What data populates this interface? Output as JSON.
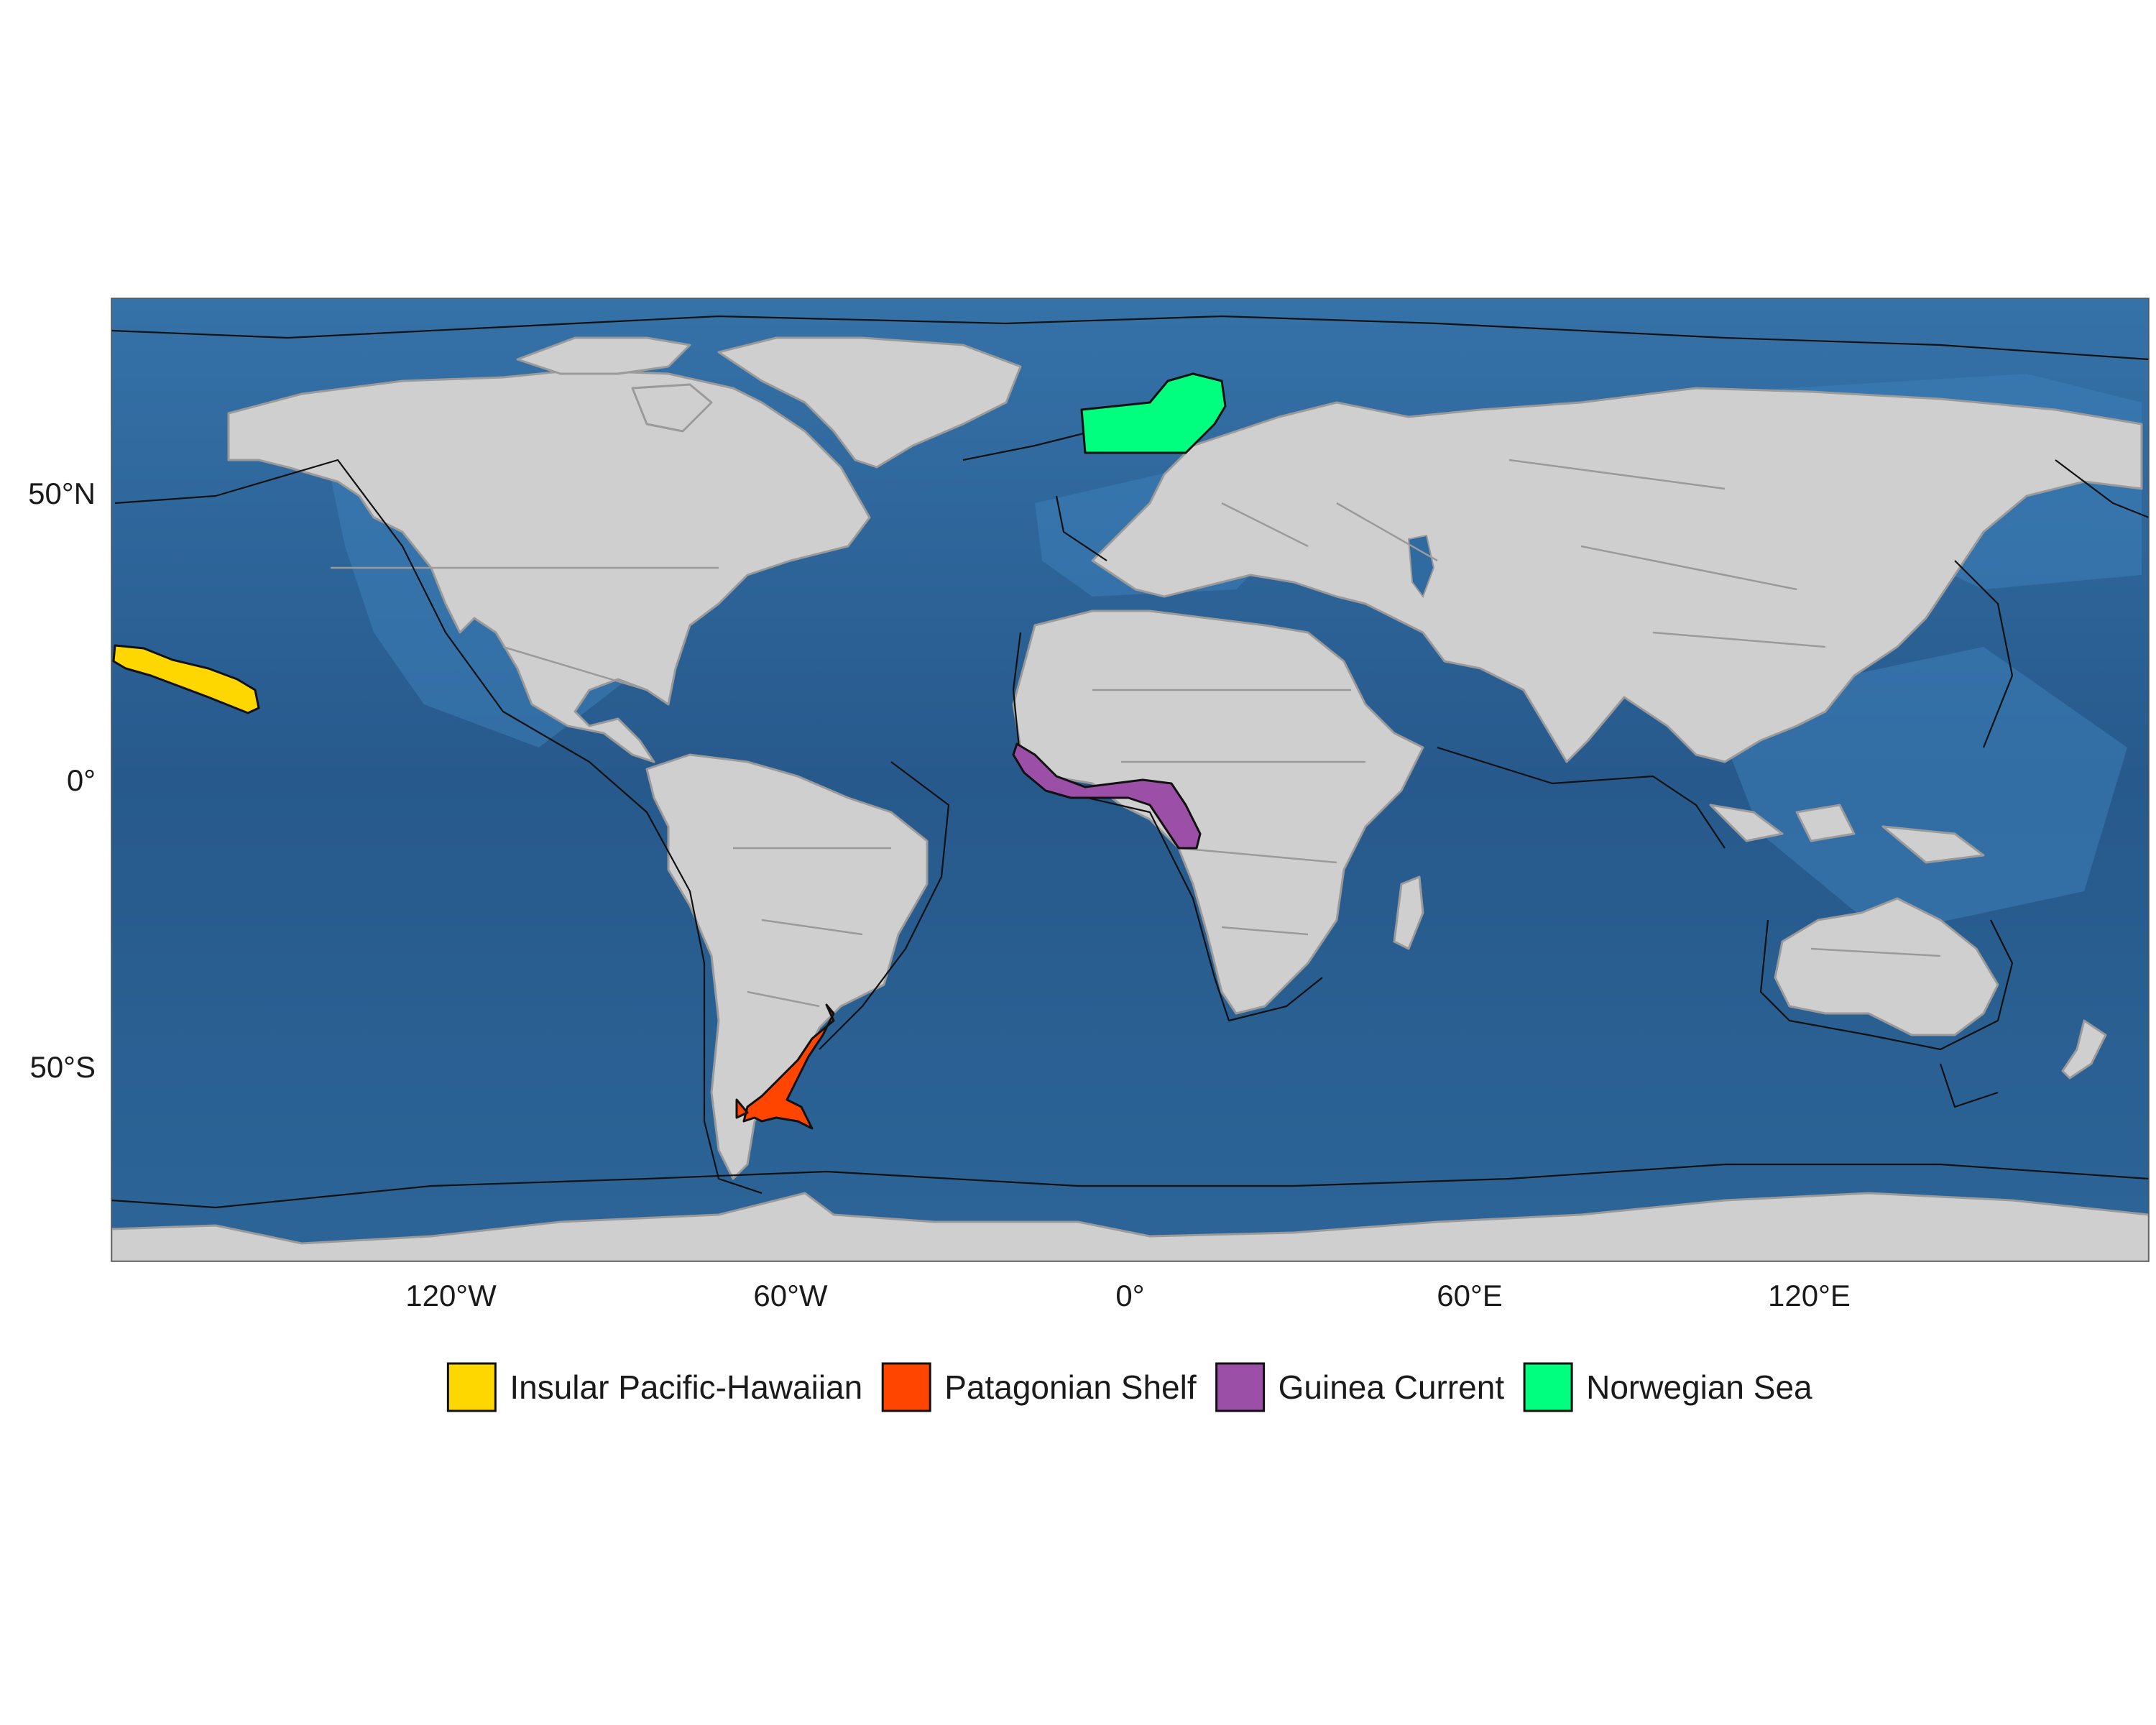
{
  "map": {
    "x_ticks": [
      {
        "lon": -120,
        "label": "120°W"
      },
      {
        "lon": -60,
        "label": "60°W"
      },
      {
        "lon": 0,
        "label": "0°"
      },
      {
        "lon": 60,
        "label": "60°E"
      },
      {
        "lon": 120,
        "label": "120°E"
      }
    ],
    "y_ticks": [
      {
        "lat": 50,
        "label": "50°N"
      },
      {
        "lat": 0,
        "label": "0°"
      },
      {
        "lat": -50,
        "label": "50°S"
      }
    ],
    "colors": {
      "ocean": "#2f6aa0",
      "land": "#cfcfcf",
      "land_border": "#9a9a9a",
      "lme_outline": "#111111"
    }
  },
  "legend": {
    "placement": "bottom",
    "items": [
      {
        "label": "Insular Pacific-Hawaiian",
        "color": "#FFD700"
      },
      {
        "label": "Patagonian Shelf",
        "color": "#FF4500"
      },
      {
        "label": "Guinea Current",
        "color": "#9B4FA6"
      },
      {
        "label": "Norwegian Sea",
        "color": "#00FF7F"
      }
    ]
  }
}
